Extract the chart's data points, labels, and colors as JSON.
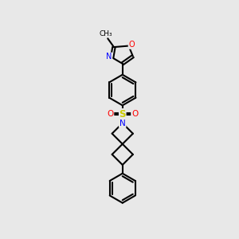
{
  "background_color": "#e8e8e8",
  "line_color": "#000000",
  "bond_width": 1.5,
  "atom_colors": {
    "N": "#0000ff",
    "O": "#ff0000",
    "S": "#cccc00",
    "C": "#000000"
  }
}
